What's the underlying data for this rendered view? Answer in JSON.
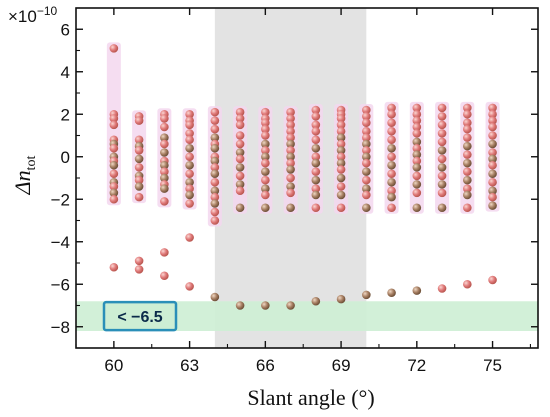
{
  "chart_data": {
    "type": "scatter",
    "xlabel": "Slant angle (°)",
    "ylabel": "Δn",
    "ylabel_subscript": "tot",
    "y_multiplier": "×10",
    "y_multiplier_exp": "−10",
    "xlim": [
      58.5,
      76.8
    ],
    "ylim": [
      -9,
      7
    ],
    "xticks": [
      60,
      63,
      66,
      69,
      72,
      75
    ],
    "yticks": [
      -8,
      -6,
      -4,
      -2,
      0,
      2,
      4,
      6
    ],
    "ytick_labels": [
      "−8",
      "−6",
      "−4",
      "−2",
      "0",
      "2",
      "4",
      "6"
    ],
    "shaded_x_region": [
      64,
      70
    ],
    "shaded_y_band": [
      -8.2,
      -6.8
    ],
    "annotation": "< −6.5",
    "colors": {
      "low_points": "#e07a7a",
      "high_points": "#9a7a60",
      "x_region": "#e3e3e3",
      "y_band": "#cdeed4",
      "annotation_border": "#2a8fb8",
      "annotation_fill": "#cdeed4",
      "column_glow": "#f3d7ef"
    },
    "series": [
      {
        "x": 60,
        "y": [
          5.1,
          2.0,
          1.8,
          1.5,
          0.8,
          0.6,
          0.4,
          0.0,
          -0.2,
          -0.4,
          -0.8,
          -1.2,
          -1.4,
          -1.7,
          -2.0,
          -5.2
        ]
      },
      {
        "x": 61,
        "y": [
          1.9,
          1.7,
          0.8,
          0.5,
          0.3,
          -0.1,
          -0.5,
          -0.9,
          -1.1,
          -1.4,
          -1.9,
          -4.9,
          -5.3
        ]
      },
      {
        "x": 62,
        "y": [
          2.0,
          1.8,
          1.4,
          0.9,
          0.6,
          0.2,
          -0.2,
          -0.4,
          -0.7,
          -1.0,
          -1.3,
          -1.5,
          -2.1,
          -4.5,
          -5.6
        ]
      },
      {
        "x": 63,
        "y": [
          2.0,
          1.7,
          1.5,
          1.1,
          0.8,
          0.4,
          0.0,
          -0.4,
          -0.8,
          -1.2,
          -1.5,
          -1.8,
          -2.2,
          -3.8,
          -6.1
        ]
      },
      {
        "x": 64,
        "y": [
          2.1,
          1.7,
          1.3,
          0.9,
          0.6,
          0.4,
          0.0,
          -0.2,
          -0.5,
          -0.8,
          -1.2,
          -1.6,
          -1.9,
          -2.2,
          -2.6,
          -3.0,
          -6.6
        ]
      },
      {
        "x": 65,
        "y": [
          2.1,
          1.8,
          1.5,
          1.0,
          0.6,
          0.2,
          -0.1,
          -0.5,
          -0.9,
          -1.3,
          -1.6,
          -2.4,
          -7.0
        ]
      },
      {
        "x": 66,
        "y": [
          2.1,
          1.8,
          1.6,
          1.3,
          1.0,
          0.6,
          0.3,
          0.0,
          -0.3,
          -0.7,
          -1.1,
          -1.5,
          -1.8,
          -2.4,
          -7.0
        ]
      },
      {
        "x": 67,
        "y": [
          2.1,
          1.8,
          1.5,
          1.2,
          0.9,
          0.6,
          0.3,
          0.0,
          -0.3,
          -0.6,
          -1.0,
          -1.4,
          -1.7,
          -2.4,
          -7.0
        ]
      },
      {
        "x": 68,
        "y": [
          2.2,
          1.9,
          1.5,
          1.2,
          0.8,
          0.4,
          0.0,
          -0.3,
          -0.7,
          -1.1,
          -1.5,
          -1.8,
          -2.4,
          -6.8
        ]
      },
      {
        "x": 69,
        "y": [
          2.2,
          2.0,
          1.8,
          1.5,
          1.2,
          0.9,
          0.6,
          0.3,
          0.0,
          -0.3,
          -0.6,
          -1.0,
          -1.4,
          -1.8,
          -2.4,
          -6.7
        ]
      },
      {
        "x": 70,
        "y": [
          2.2,
          1.9,
          1.6,
          1.2,
          0.9,
          0.6,
          0.3,
          0.0,
          -0.3,
          -0.7,
          -1.1,
          -1.5,
          -1.8,
          -2.4,
          -6.5
        ]
      },
      {
        "x": 71,
        "y": [
          2.3,
          2.0,
          1.6,
          1.2,
          0.8,
          0.4,
          0.0,
          -0.4,
          -0.8,
          -1.2,
          -1.6,
          -1.9,
          -2.4,
          -6.4
        ]
      },
      {
        "x": 72,
        "y": [
          2.3,
          2.0,
          1.7,
          1.4,
          1.1,
          0.7,
          0.4,
          0.1,
          -0.2,
          -0.5,
          -0.9,
          -1.3,
          -1.7,
          -2.4,
          -6.3
        ]
      },
      {
        "x": 73,
        "y": [
          2.3,
          1.9,
          1.5,
          1.1,
          0.7,
          0.3,
          -0.1,
          -0.5,
          -0.9,
          -1.3,
          -1.7,
          -2.4,
          -6.2
        ]
      },
      {
        "x": 74,
        "y": [
          2.3,
          2.0,
          1.6,
          1.3,
          0.9,
          0.5,
          0.1,
          -0.3,
          -0.7,
          -1.1,
          -1.5,
          -1.8,
          -2.4,
          -6.0
        ]
      },
      {
        "x": 75,
        "y": [
          2.3,
          2.0,
          1.7,
          1.4,
          1.0,
          0.6,
          0.2,
          -0.1,
          -0.4,
          -0.8,
          -1.2,
          -1.6,
          -1.9,
          -2.3,
          -5.8
        ]
      }
    ]
  }
}
